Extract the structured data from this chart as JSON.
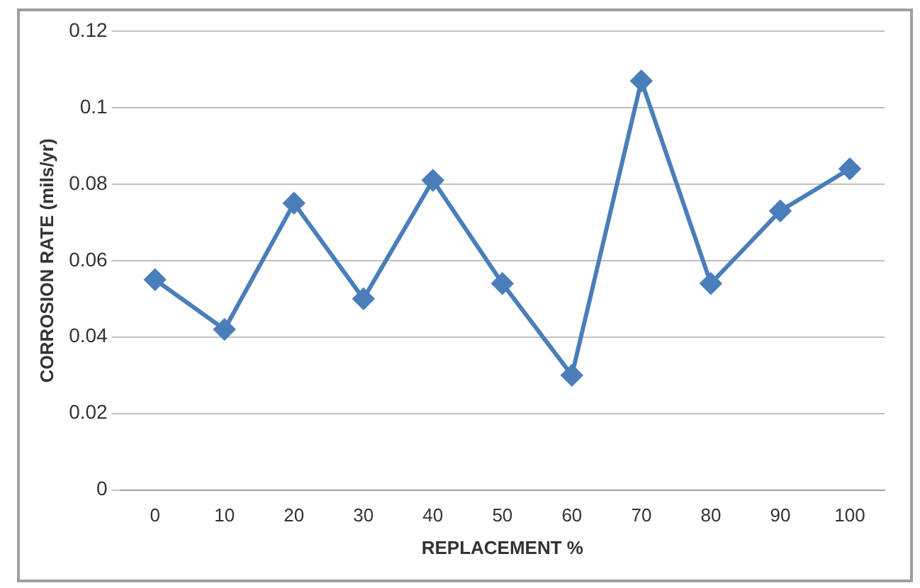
{
  "chart_data": {
    "type": "line",
    "xlabel": "REPLACEMENT %",
    "ylabel": "CORROSION RATE (mils/yr)",
    "categories": [
      "0",
      "10",
      "20",
      "30",
      "40",
      "50",
      "60",
      "70",
      "80",
      "90",
      "100"
    ],
    "series": [
      {
        "color": "#4a7ebb",
        "values": [
          0.055,
          0.042,
          0.075,
          0.05,
          0.081,
          0.054,
          0.03,
          0.107,
          0.054,
          0.073,
          0.084
        ]
      }
    ],
    "ylim": [
      0,
      0.12
    ],
    "yticks": [
      0,
      0.02,
      0.04,
      0.06,
      0.08,
      0.1,
      0.12
    ],
    "grid": "y",
    "legend": false,
    "marker": "diamond",
    "line_style": "solid"
  }
}
